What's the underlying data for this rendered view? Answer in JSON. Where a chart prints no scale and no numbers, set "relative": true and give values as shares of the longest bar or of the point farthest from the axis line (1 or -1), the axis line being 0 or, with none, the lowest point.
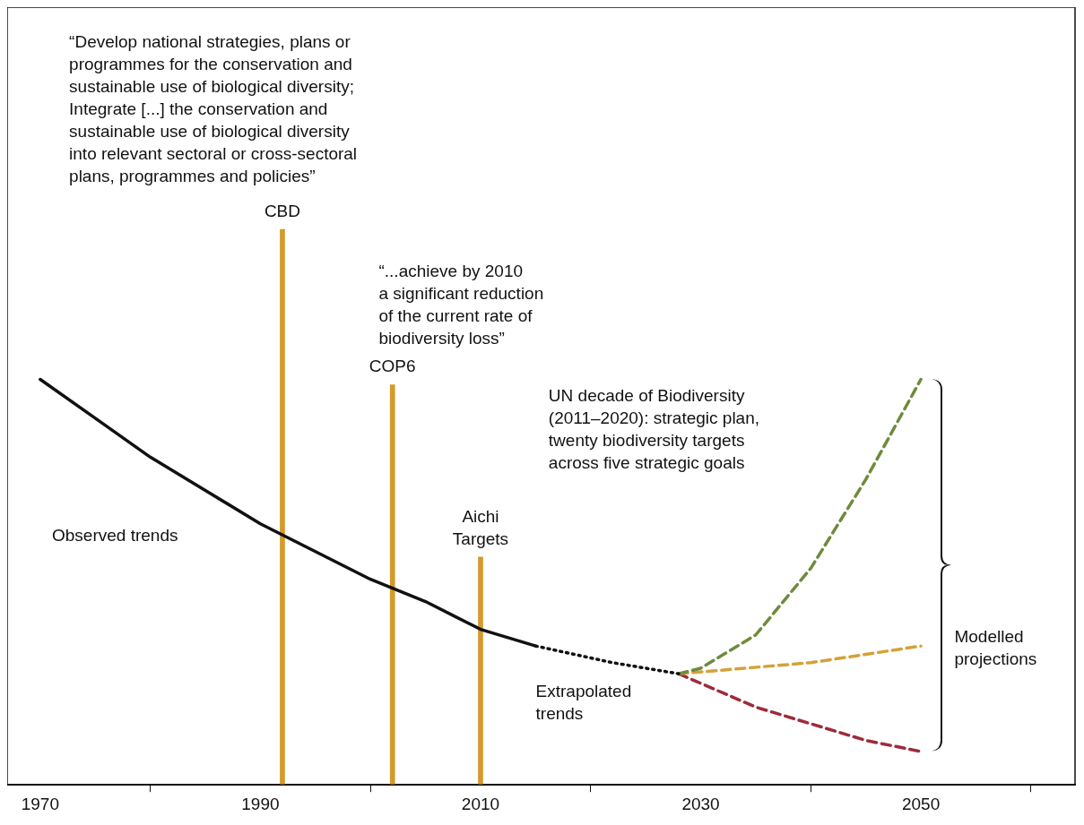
{
  "chart_data": {
    "type": "line",
    "relative": true,
    "xlim": [
      1967,
      2064
    ],
    "xticks": [
      1970,
      1990,
      2010,
      2030,
      2050
    ],
    "grid": false,
    "legend": false,
    "marker": "none",
    "series": [
      {
        "name": "Observed trends",
        "line_style": "solid",
        "color": "#111111",
        "x": [
          1970,
          1975,
          1980,
          1985,
          1990,
          1995,
          2000,
          2005,
          2010,
          2015
        ],
        "values": [
          0.73,
          0.66,
          0.59,
          0.53,
          0.47,
          0.42,
          0.37,
          0.33,
          0.28,
          0.25
        ]
      },
      {
        "name": "Extrapolated trends",
        "line_style": "dotted",
        "color": "#111111",
        "x": [
          2015,
          2022,
          2028
        ],
        "values": [
          0.25,
          0.22,
          0.2
        ]
      },
      {
        "line_style": "dashed",
        "color": "#6e8b3d",
        "x": [
          2028,
          2030,
          2035,
          2040,
          2045,
          2050
        ],
        "values": [
          0.2,
          0.21,
          0.27,
          0.39,
          0.55,
          0.73
        ]
      },
      {
        "line_style": "dashed",
        "color": "#d4a23a",
        "x": [
          2028,
          2040,
          2050
        ],
        "values": [
          0.2,
          0.22,
          0.25
        ]
      },
      {
        "line_style": "dashed",
        "color": "#9e2a3c",
        "x": [
          2028,
          2035,
          2040,
          2045,
          2050
        ],
        "values": [
          0.2,
          0.14,
          0.11,
          0.08,
          0.06
        ]
      },
      {
        "type": "bar",
        "color": "#d49a2a",
        "x": [
          1992,
          2002,
          2010
        ],
        "values": [
          1,
          0.72,
          0.41
        ]
      }
    ],
    "annotations": [
      "“Develop national strategies, plans or\nprogrammes for the conservation and\nsustainable use of biological diversity;\nIntegrate [...] the conservation and\nsustainable use of biological diversity\ninto relevant sectoral or cross-sectoral\nplans, programmes and policies”",
      "“...achieve by 2010\na significant reduction\nof the current rate of\nbiodiversity loss”",
      "UN decade of Biodiversity\n(2011–2020): strategic plan,\ntwenty biodiversity targets\nacross five strategic goals",
      "Modelled\nprojections",
      {
        "text": "CBD",
        "x": 1992,
        "y": 1
      },
      {
        "text": "COP6",
        "x": 2002,
        "y": 0.72
      },
      {
        "text": "Aichi\nTargets",
        "x": 2010,
        "y": 0.41
      }
    ]
  }
}
